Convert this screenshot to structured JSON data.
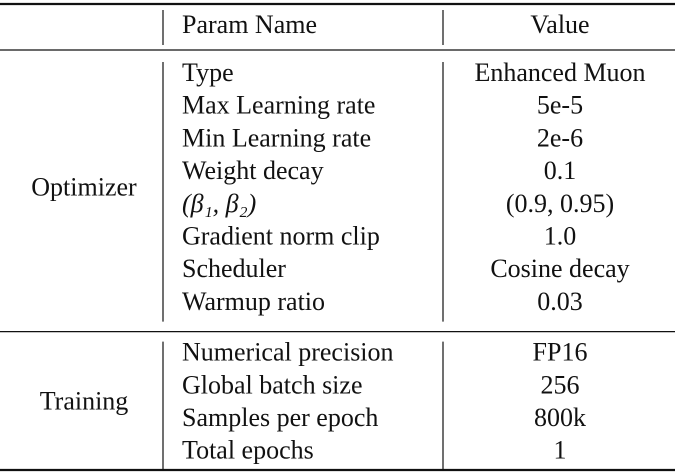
{
  "table": {
    "header": {
      "param": "Param Name",
      "value": "Value"
    },
    "groups": [
      {
        "name": "Optimizer",
        "rows": [
          [
            "Type",
            "Enhanced Muon"
          ],
          [
            "Max Learning rate",
            "5e-5"
          ],
          [
            "Min Learning rate",
            "2e-6"
          ],
          [
            "Weight decay",
            "0.1"
          ],
          [
            "(β₁, β₂)",
            "(0.9, 0.95)"
          ],
          [
            "Gradient norm clip",
            "1.0"
          ],
          [
            "Scheduler",
            "Cosine decay"
          ],
          [
            "Warmup ratio",
            "0.03"
          ]
        ]
      },
      {
        "name": "Training",
        "rows": [
          [
            "Numerical precision",
            "FP16"
          ],
          [
            "Global batch size",
            "256"
          ],
          [
            "Samples per epoch",
            "800k"
          ],
          [
            "Total epochs",
            "1"
          ]
        ]
      }
    ]
  }
}
